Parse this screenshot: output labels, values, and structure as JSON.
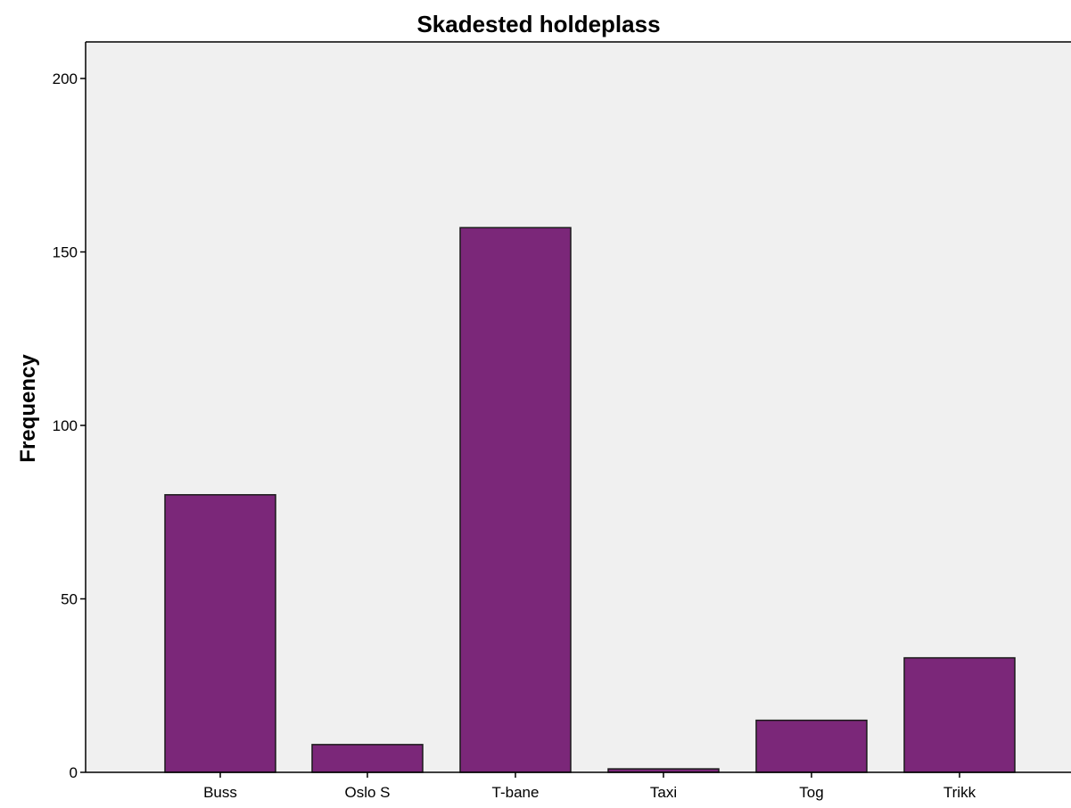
{
  "chart_data": {
    "type": "bar",
    "title": "Skadested holdeplass",
    "xlabel": "",
    "ylabel": "Frequency",
    "categories": [
      "Buss",
      "Oslo S",
      "T-bane",
      "Taxi",
      "Tog",
      "Trikk"
    ],
    "values": [
      80,
      8,
      157,
      1,
      15,
      33
    ],
    "ylim": [
      0,
      210
    ],
    "yticks": [
      "0",
      "50",
      "100",
      "150",
      "200"
    ],
    "grid": false,
    "legend": "none",
    "colors": {
      "bar_fill": "#7b2779",
      "bar_stroke": "#1a1a1a",
      "plot_background": "#f0f0f0",
      "axis": "#000000"
    }
  }
}
